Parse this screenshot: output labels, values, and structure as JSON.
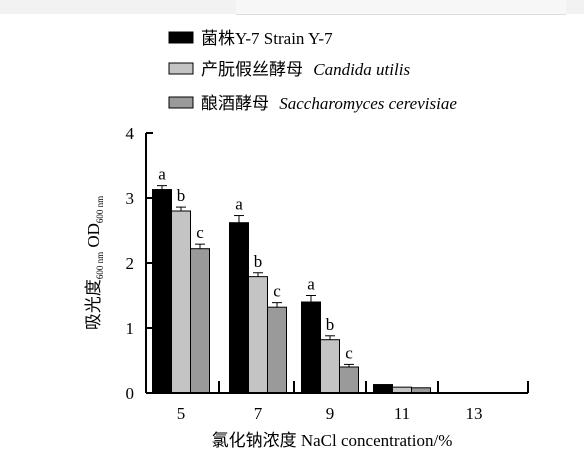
{
  "chart_data": {
    "type": "bar",
    "categories": [
      "5",
      "7",
      "9",
      "11",
      "13"
    ],
    "series": [
      {
        "name": "菌株Y-7 Strain Y-7",
        "color": "#000000",
        "values": [
          3.13,
          2.62,
          1.4,
          0.13,
          0.0
        ],
        "errors": [
          0.06,
          0.11,
          0.1,
          0.0,
          0.0
        ],
        "labels": [
          "a",
          "a",
          "a",
          "",
          ""
        ]
      },
      {
        "name": "产朊假丝酵母 Candida utilis",
        "color": "#c4c4c4",
        "values": [
          2.8,
          1.79,
          0.82,
          0.09,
          0.0
        ],
        "errors": [
          0.06,
          0.06,
          0.06,
          0.0,
          0.0
        ],
        "labels": [
          "b",
          "b",
          "b",
          "",
          ""
        ]
      },
      {
        "name": "酿酒酵母 Saccharomyces cerevisiae",
        "color": "#9a9a9a",
        "values": [
          2.22,
          1.32,
          0.4,
          0.08,
          0.0
        ],
        "errors": [
          0.07,
          0.07,
          0.04,
          0.0,
          0.0
        ],
        "labels": [
          "c",
          "c",
          "c",
          "",
          ""
        ]
      }
    ],
    "legend": [
      {
        "main": "菌株Y-7 Strain Y-7",
        "italic": ""
      },
      {
        "main": "产朊假丝酵母 ",
        "italic": "Candida utilis"
      },
      {
        "main": "酿酒酵母 ",
        "italic": "Saccharomyces cerevisiae"
      }
    ],
    "xlabel": "氯化钠浓度 NaCl concentration/%",
    "ylabel": {
      "cn": "吸光度",
      "sub1": "600 nm",
      "od": "OD",
      "sub2": "600 nm"
    },
    "ylim": [
      0,
      4
    ],
    "yticks": [
      "0",
      "1",
      "2",
      "3",
      "4"
    ],
    "legend_position": "top"
  }
}
